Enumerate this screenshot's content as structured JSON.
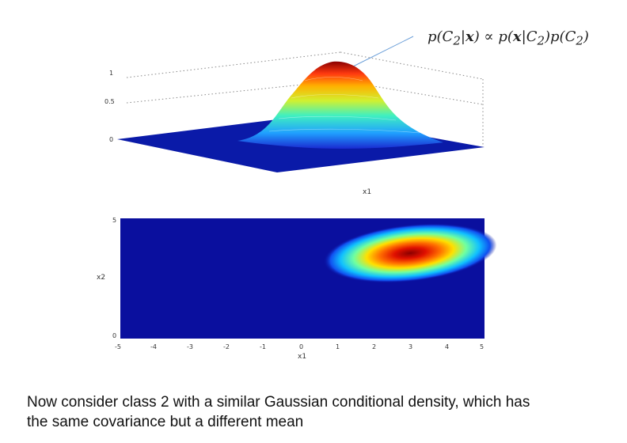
{
  "slide": {
    "formula": {
      "p1": "p(C",
      "sub1": "2",
      "bar1": "|",
      "x1": "x",
      "close1": ") ∝ p(",
      "x2": "x",
      "bar2": "|C",
      "sub2": "2",
      "mid": ")p(C",
      "sub3": "2",
      "end": ")"
    },
    "caption_line1": "Now consider class 2 with a similar Gaussian conditional density, which has",
    "caption_line2": "the same covariance but a different mean"
  },
  "surface_plot": {
    "z_ticks": [
      "1",
      "0.5",
      "0"
    ],
    "x1_label": "x1",
    "colormap": "jet"
  },
  "heatmap": {
    "y_ticks": [
      "5",
      "0"
    ],
    "x_ticks": [
      "-5",
      "-4",
      "-3",
      "-2",
      "-1",
      "0",
      "1",
      "2",
      "3",
      "4",
      "5"
    ],
    "xlabel": "x1",
    "ylabel": "x2",
    "colormap": "jet",
    "background_color": "#0a0f9e"
  }
}
